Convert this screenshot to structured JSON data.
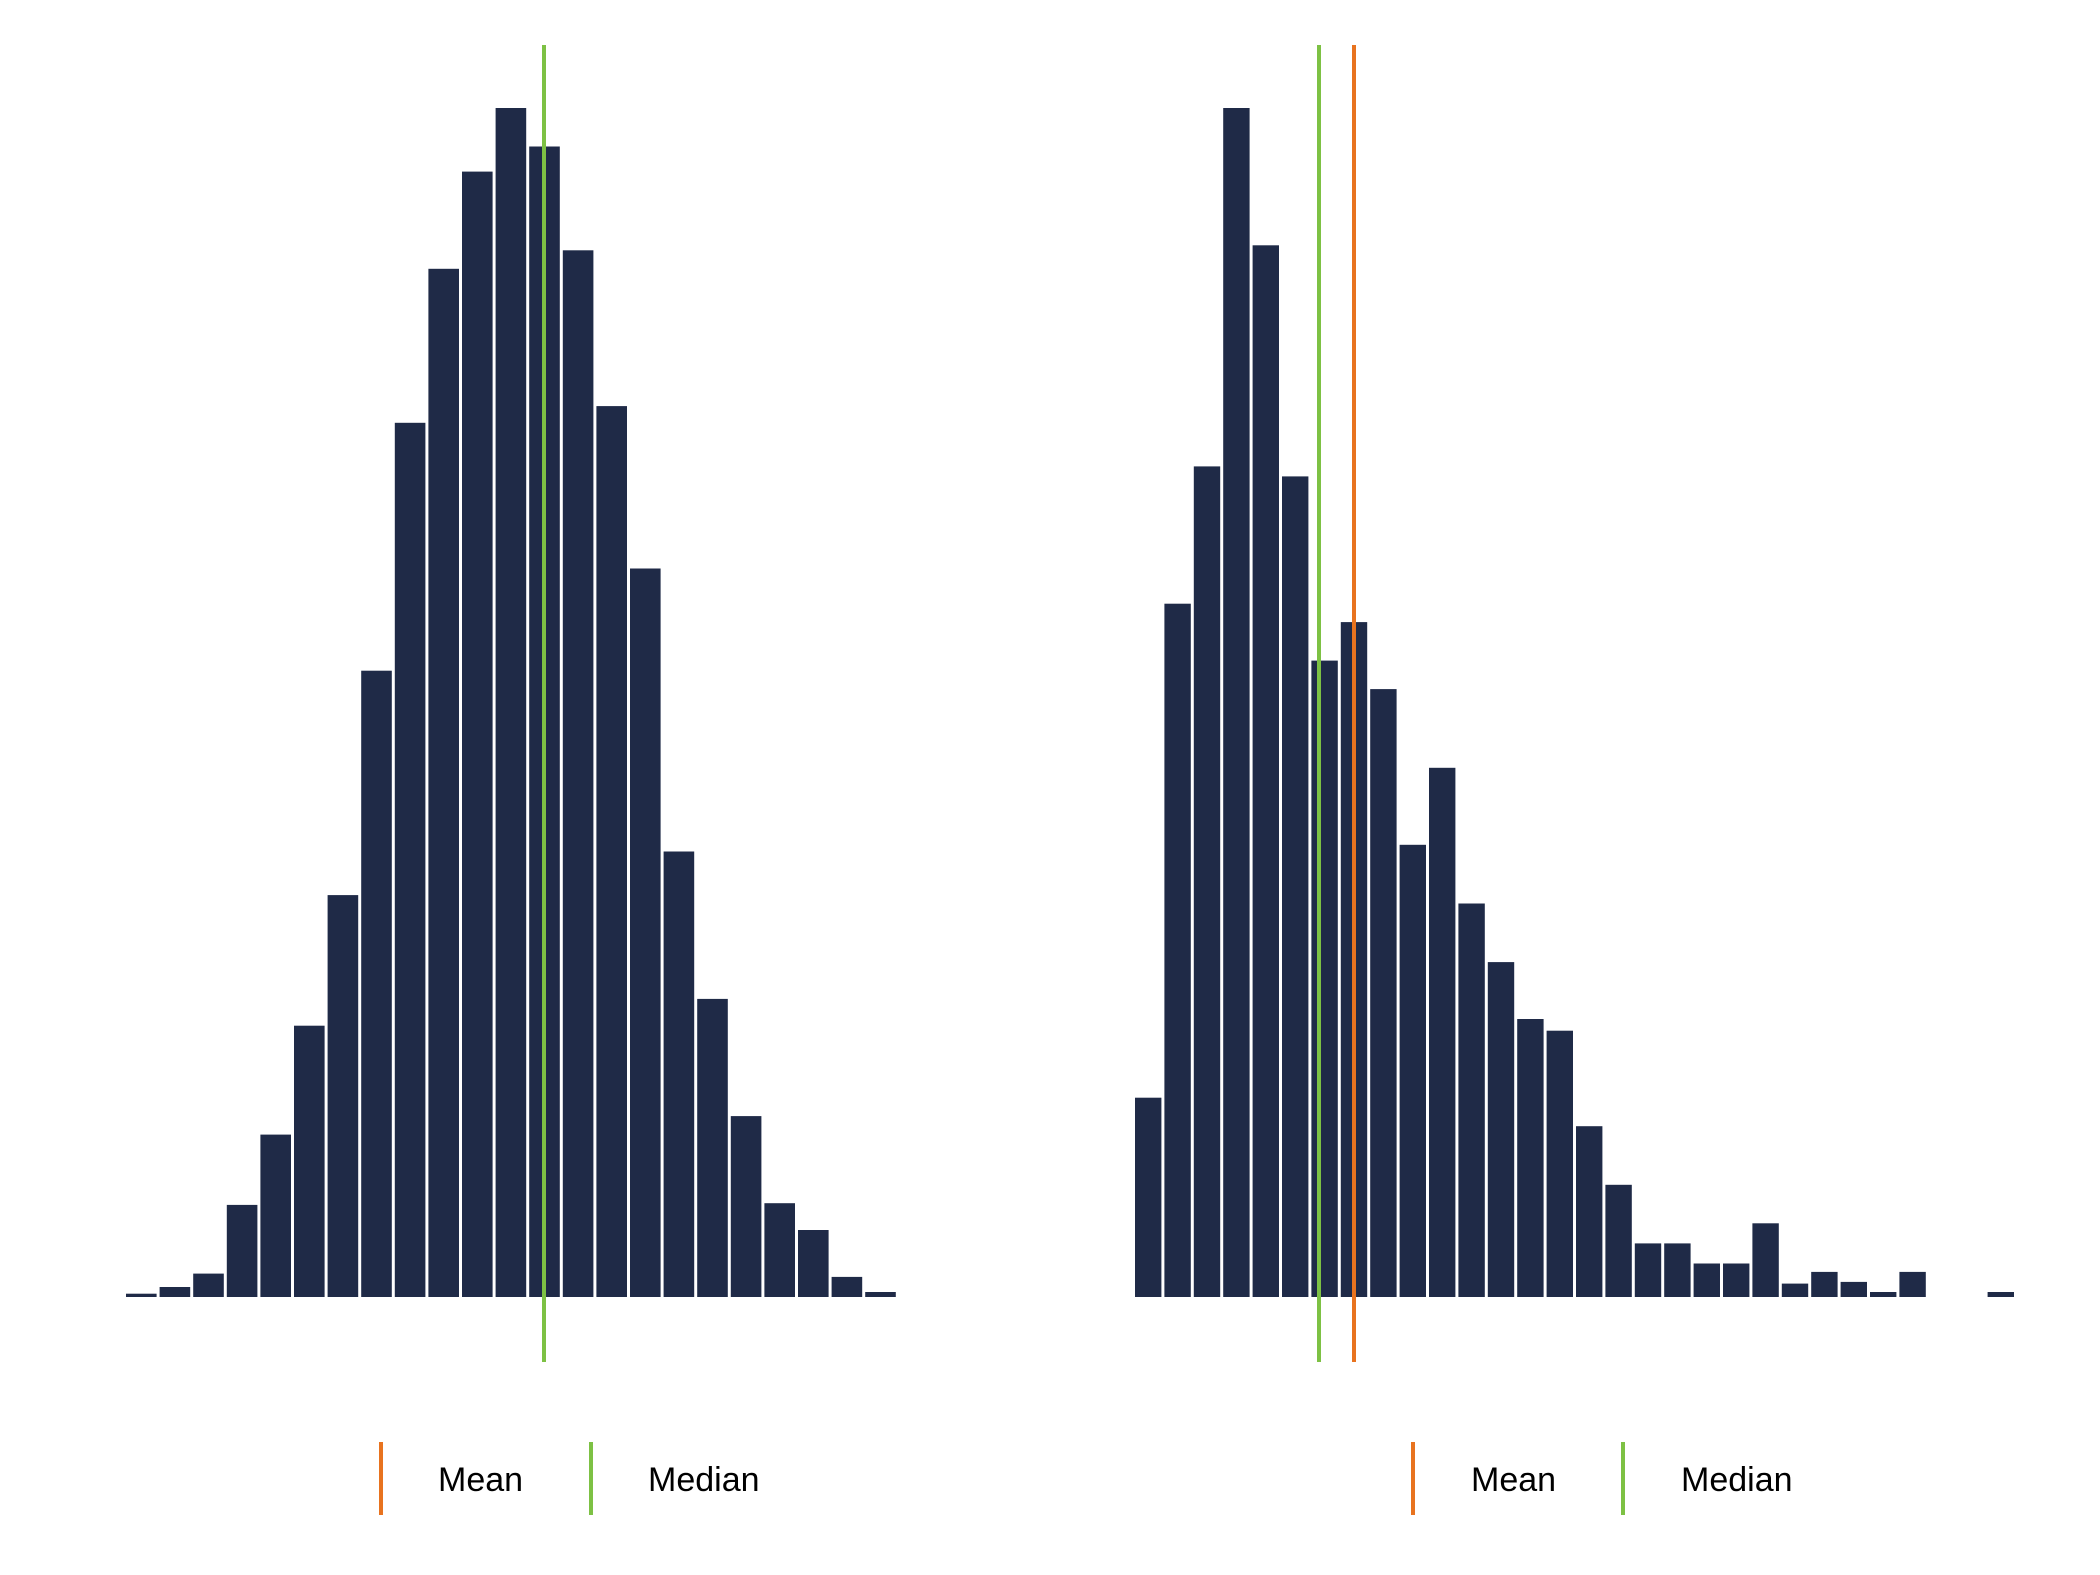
{
  "colors": {
    "bar": "#1f2a47",
    "mean": "#e8731f",
    "median": "#7dc144",
    "background": "#ffffff"
  },
  "legend": {
    "mean_label": "Mean",
    "median_label": "Median"
  },
  "chart_data": [
    {
      "type": "bar",
      "subtype": "histogram",
      "values": [
        0.2,
        0.6,
        1.4,
        5.5,
        9.7,
        16.2,
        24.0,
        37.4,
        52.2,
        61.4,
        67.2,
        71.0,
        68.7,
        62.5,
        53.2,
        43.5,
        26.6,
        17.8,
        10.8,
        5.6,
        4.0,
        1.2,
        0.3
      ],
      "ylim": [
        0,
        71
      ],
      "mean_bin": 12.44,
      "median_bin": 12.44,
      "legend": [
        "Mean",
        "Median"
      ],
      "grid": false,
      "axes_visible": false
    },
    {
      "type": "bar",
      "subtype": "histogram",
      "values": [
        11.9,
        41.4,
        49.6,
        71.0,
        62.8,
        49.0,
        38.0,
        40.3,
        36.3,
        27.0,
        31.6,
        23.5,
        20.0,
        16.6,
        15.9,
        10.2,
        6.7,
        3.2,
        3.2,
        2.0,
        2.0,
        4.4,
        0.8,
        1.5,
        0.9,
        0.3,
        1.5,
        0.0,
        0.0,
        0.3
      ],
      "ylim": [
        0,
        71
      ],
      "mean_bin": 7.45,
      "median_bin": 6.26,
      "legend": [
        "Mean",
        "Median"
      ],
      "grid": false,
      "axes_visible": false
    }
  ]
}
